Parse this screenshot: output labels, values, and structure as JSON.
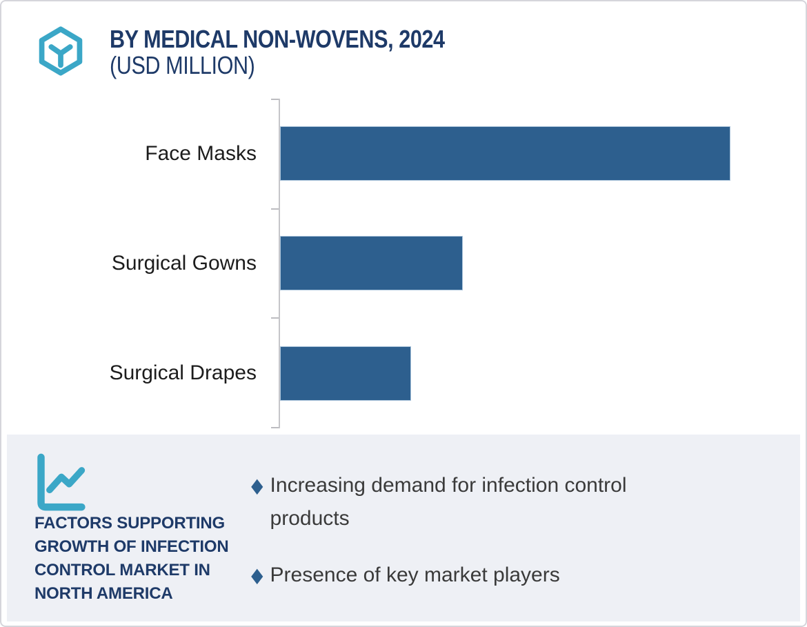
{
  "header": {
    "logo_icon": "hexagon-cube-logo",
    "title": "BY MEDICAL NON-WOVENS, 2024",
    "subtitle": "(USD MILLION)"
  },
  "chart_data": {
    "type": "bar",
    "orientation": "horizontal",
    "title": "BY MEDICAL NON-WOVENS, 2024",
    "unit_label": "(USD MILLION)",
    "categories": [
      "Face Masks",
      "Surgical Gowns",
      "Surgical Drapes"
    ],
    "values_pct_of_max": [
      100,
      40.6,
      29.1
    ],
    "value_labels_shown": false,
    "numeric_axis_shown": false,
    "bar_color": "#2d5f8e",
    "axis_color": "#c5c5c9",
    "grid": false,
    "legend_position": "none"
  },
  "factors": {
    "icon": "line-chart-icon",
    "heading": "FACTORS SUPPORTING\nGROWTH OF INFECTION\nCONTROL MARKET IN\nNORTH AMERICA",
    "items": [
      "Increasing demand for infection control products",
      "Presence of key market players"
    ]
  },
  "colors": {
    "accent_teal": "#3ba7c7",
    "navy": "#1e3a68",
    "bar_blue": "#2d5f8e",
    "panel_bg": "#eef0f5",
    "axis_gray": "#c5c5c9",
    "bullet_text": "#3a3a3a"
  }
}
